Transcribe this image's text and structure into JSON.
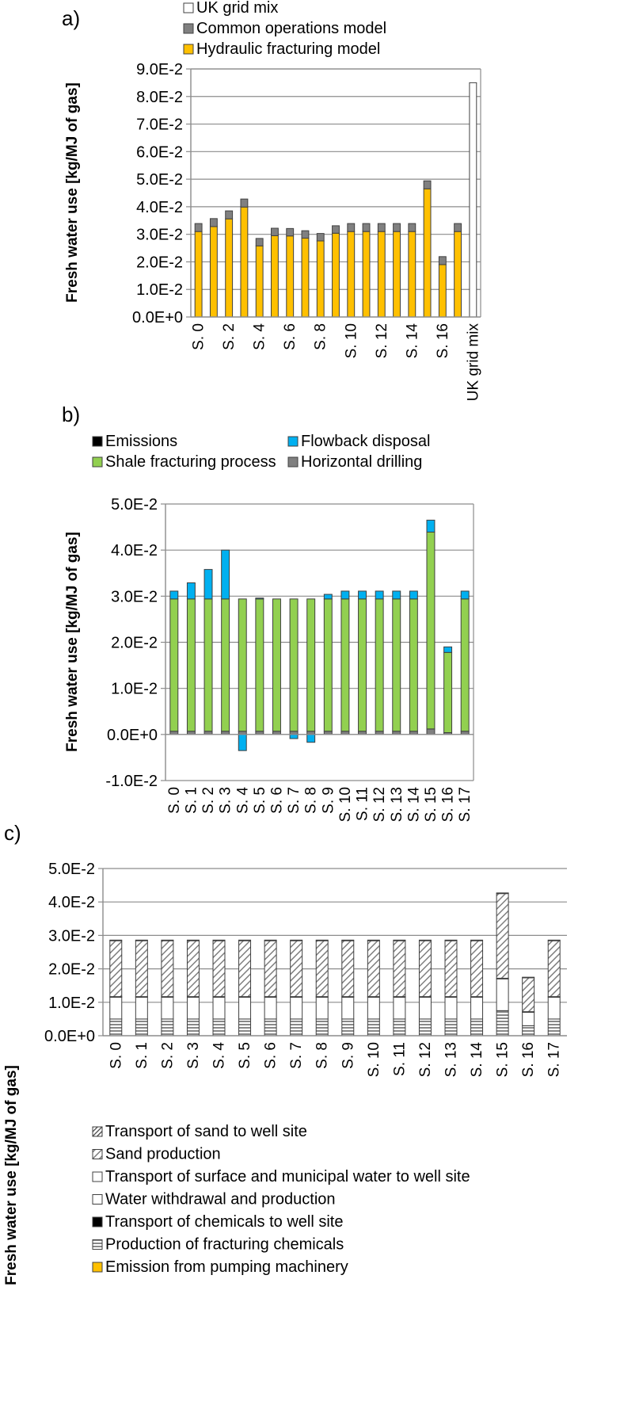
{
  "chart_data": [
    {
      "panel_label": "a)",
      "type": "bar",
      "stacked": true,
      "ylabel": "Fresh water use [kg/MJ of gas]",
      "ylim": [
        0,
        0.09
      ],
      "yticks": [
        "9.0E-2",
        "8.0E-2",
        "7.0E-2",
        "6.0E-2",
        "5.0E-2",
        "4.0E-2",
        "3.0E-2",
        "2.0E-2",
        "1.0E-2",
        "0.0E+0"
      ],
      "categories": [
        "S. 0",
        "S. 1",
        "S. 2",
        "S. 3",
        "S. 4",
        "S. 5",
        "S. 6",
        "S. 7",
        "S. 8",
        "S. 9",
        "S. 10",
        "S. 11",
        "S. 12",
        "S. 13",
        "S. 14",
        "S. 15",
        "S. 16",
        "S. 17",
        "UK grid mix"
      ],
      "tick_labels": [
        "S. 0",
        "",
        "S. 2",
        "",
        "S. 4",
        "",
        "S. 6",
        "",
        "S. 8",
        "",
        "S. 10",
        "",
        "S. 12",
        "",
        "S. 14",
        "",
        "S. 16",
        "",
        "UK grid mix"
      ],
      "grid": true,
      "legend_position": "top",
      "legend": [
        "UK grid mix",
        "Common operations model",
        "Hydraulic fracturing model"
      ],
      "series": [
        {
          "name": "Hydraulic fracturing model",
          "color": "#FFC000",
          "values": [
            0.031,
            0.0328,
            0.0356,
            0.0399,
            0.0258,
            0.0295,
            0.0294,
            0.0286,
            0.0276,
            0.0304,
            0.031,
            0.031,
            0.031,
            0.031,
            0.031,
            0.0465,
            0.019,
            0.031,
            0
          ]
        },
        {
          "name": "Common operations model",
          "color": "#808080",
          "values": [
            0.0029,
            0.0029,
            0.0029,
            0.0029,
            0.0027,
            0.0027,
            0.0027,
            0.0027,
            0.0027,
            0.0027,
            0.0029,
            0.0029,
            0.0029,
            0.0029,
            0.0029,
            0.0029,
            0.0029,
            0.0029,
            0
          ]
        },
        {
          "name": "UK grid mix",
          "color": "#FFFFFF",
          "values": [
            0,
            0,
            0,
            0,
            0,
            0,
            0,
            0,
            0,
            0,
            0,
            0,
            0,
            0,
            0,
            0,
            0,
            0,
            0.085
          ]
        }
      ]
    },
    {
      "panel_label": "b)",
      "type": "bar",
      "stacked": true,
      "ylabel": "Fresh water use [kg/MJ of gas]",
      "ylim": [
        -0.01,
        0.05
      ],
      "yticks": [
        "5.0E-2",
        "4.0E-2",
        "3.0E-2",
        "2.0E-2",
        "1.0E-2",
        "0.0E+0",
        "-1.0E-2"
      ],
      "categories": [
        "S. 0",
        "S. 1",
        "S. 2",
        "S. 3",
        "S. 4",
        "S. 5",
        "S. 6",
        "S. 7",
        "S. 8",
        "S. 9",
        "S. 10",
        "S. 11",
        "S. 12",
        "S. 13",
        "S. 14",
        "S. 15",
        "S. 16",
        "S. 17"
      ],
      "tick_labels": [
        "S. 0",
        "S. 1",
        "S. 2",
        "S. 3",
        "S. 4",
        "S. 5",
        "S. 6",
        "S. 7",
        "S. 8",
        "S. 9",
        "S. 10",
        "S. 11",
        "S. 12",
        "S. 13",
        "S. 14",
        "S. 15",
        "S. 16",
        "S. 17"
      ],
      "grid": true,
      "legend_position": "top",
      "legend": [
        "Emissions",
        "Flowback disposal",
        "Shale fracturing process",
        "Horizontal drilling"
      ],
      "series": [
        {
          "name": "Emissions",
          "color": "#000000",
          "values": [
            0,
            0,
            0,
            0,
            0,
            0,
            0,
            0,
            0,
            0,
            0,
            0,
            0,
            0,
            0,
            0,
            0,
            0
          ]
        },
        {
          "name": "Horizontal drilling",
          "color": "#808080",
          "values": [
            0.0007,
            0.0007,
            0.0007,
            0.0007,
            0.0007,
            0.0007,
            0.0007,
            0.0007,
            0.0007,
            0.0007,
            0.0007,
            0.0007,
            0.0007,
            0.0007,
            0.0007,
            0.0012,
            0.0004,
            0.0007
          ]
        },
        {
          "name": "Shale fracturing process",
          "color": "#92D050",
          "values": [
            0.0287,
            0.0287,
            0.0287,
            0.0287,
            0.0287,
            0.0287,
            0.0287,
            0.0287,
            0.0287,
            0.0287,
            0.0287,
            0.0287,
            0.0287,
            0.0287,
            0.0287,
            0.0427,
            0.0174,
            0.0287
          ]
        },
        {
          "name": "Flowback disposal",
          "color": "#00B0F0",
          "values": [
            0.0017,
            0.0035,
            0.0064,
            0.0106,
            -0.0035,
            0.0002,
            0,
            -0.0009,
            -0.0017,
            0.001,
            0.0017,
            0.0017,
            0.0017,
            0.0017,
            0.0017,
            0.0026,
            0.0012,
            0.0017
          ]
        }
      ]
    },
    {
      "panel_label": "c)",
      "type": "bar",
      "stacked": true,
      "ylabel": "Fresh water use [kg/MJ of gas]",
      "ylim": [
        0,
        0.05
      ],
      "yticks": [
        "5.0E-2",
        "4.0E-2",
        "3.0E-2",
        "2.0E-2",
        "1.0E-2",
        "0.0E+0"
      ],
      "categories": [
        "S. 0",
        "S. 1",
        "S. 2",
        "S. 3",
        "S. 4",
        "S. 5",
        "S. 6",
        "S. 7",
        "S. 8",
        "S. 9",
        "S. 10",
        "S. 11",
        "S. 12",
        "S. 13",
        "S. 14",
        "S. 15",
        "S. 16",
        "S. 17"
      ],
      "tick_labels": [
        "S. 0",
        "S. 1",
        "S. 2",
        "S. 3",
        "S. 4",
        "S. 5",
        "S. 6",
        "S. 7",
        "S. 8",
        "S. 9",
        "S. 10",
        "S. 11",
        "S. 12",
        "S. 13",
        "S. 14",
        "S. 15",
        "S. 16",
        "S. 17"
      ],
      "grid": true,
      "legend_position": "bottom",
      "legend": [
        "Transport of sand to well site",
        "Sand production",
        "Transport of surface and municipal water to well site",
        "Water withdrawal and production",
        "Transport of chemicals to well site",
        "Production of fracturing chemicals",
        "Emission from pumping machinery"
      ],
      "series": [
        {
          "name": "Emission from pumping machinery",
          "color": "#FFC000",
          "pattern": "solid",
          "values": [
            0,
            0,
            0,
            0,
            0,
            0,
            0,
            0,
            0,
            0,
            0,
            0,
            0,
            0,
            0,
            0,
            0,
            0
          ]
        },
        {
          "name": "Production of fracturing chemicals",
          "color": "#808080",
          "pattern": "hlines",
          "values": [
            0.005,
            0.005,
            0.005,
            0.005,
            0.005,
            0.005,
            0.005,
            0.005,
            0.005,
            0.005,
            0.005,
            0.005,
            0.005,
            0.005,
            0.005,
            0.0075,
            0.003,
            0.005
          ]
        },
        {
          "name": "Transport of chemicals to well site",
          "color": "#000000",
          "pattern": "solid",
          "values": [
            0,
            0,
            0,
            0,
            0,
            0,
            0,
            0,
            0,
            0,
            0,
            0,
            0,
            0,
            0,
            0,
            0,
            0
          ]
        },
        {
          "name": "Water withdrawal and production",
          "color": "#FFFFFF",
          "pattern": "plain",
          "values": [
            0.0065,
            0.0065,
            0.0065,
            0.0065,
            0.0065,
            0.0065,
            0.0065,
            0.0065,
            0.0065,
            0.0065,
            0.0065,
            0.0065,
            0.0065,
            0.0065,
            0.0065,
            0.0095,
            0.004,
            0.0065
          ]
        },
        {
          "name": "Transport of surface and municipal water to well site",
          "color": "#FFFFFF",
          "pattern": "plain",
          "values": [
            0.0002,
            0.0002,
            0.0002,
            0.0002,
            0.0002,
            0.0002,
            0.0002,
            0.0002,
            0.0002,
            0.0002,
            0.0002,
            0.0002,
            0.0002,
            0.0002,
            0.0002,
            0.0002,
            0.0002,
            0.0002
          ]
        },
        {
          "name": "Sand production",
          "color": "#A6A6A6",
          "pattern": "diagonal",
          "values": [
            0.0167,
            0.0167,
            0.0167,
            0.0167,
            0.0167,
            0.0167,
            0.0167,
            0.0167,
            0.0167,
            0.0167,
            0.0167,
            0.0167,
            0.0167,
            0.0167,
            0.0167,
            0.0253,
            0.0101,
            0.0167
          ]
        },
        {
          "name": "Transport of sand to well site",
          "color": "#7F7F7F",
          "pattern": "dense-diagonal",
          "values": [
            0.0002,
            0.0002,
            0.0002,
            0.0002,
            0.0002,
            0.0002,
            0.0002,
            0.0002,
            0.0002,
            0.0002,
            0.0002,
            0.0002,
            0.0002,
            0.0002,
            0.0002,
            0.0002,
            0.0002,
            0.0002
          ]
        }
      ]
    }
  ]
}
